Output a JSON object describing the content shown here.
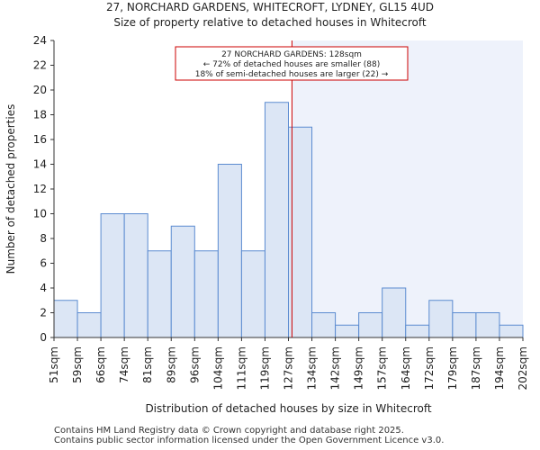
{
  "title_line1": "27, NORCHARD GARDENS, WHITECROFT, LYDNEY, GL15 4UD",
  "title_line2": "Size of property relative to detached houses in Whitecroft",
  "footer_line1": "Contains HM Land Registry data © Crown copyright and database right 2025.",
  "footer_line2": "Contains public sector information licensed under the Open Government Licence v3.0.",
  "colors": {
    "bar_fill": "#dce6f5",
    "bar_stroke": "#5b8bd0",
    "highlight_region": "#eef2fb",
    "marker_line": "#cc0000",
    "annotation_border": "#cc0000"
  },
  "chart_data": {
    "type": "bar",
    "title": "27, NORCHARD GARDENS, WHITECROFT, LYDNEY, GL15 4UD",
    "subtitle": "Size of property relative to detached houses in Whitecroft",
    "xlabel": "Distribution of detached houses by size in Whitecroft",
    "ylabel": "Number of detached properties",
    "bin_edges": [
      "51sqm",
      "59sqm",
      "66sqm",
      "74sqm",
      "81sqm",
      "89sqm",
      "96sqm",
      "104sqm",
      "111sqm",
      "119sqm",
      "127sqm",
      "134sqm",
      "142sqm",
      "149sqm",
      "157sqm",
      "164sqm",
      "172sqm",
      "179sqm",
      "187sqm",
      "194sqm",
      "202sqm"
    ],
    "values": [
      3,
      2,
      10,
      10,
      7,
      9,
      7,
      14,
      7,
      19,
      17,
      2,
      1,
      2,
      4,
      1,
      3,
      2,
      2,
      1
    ],
    "ylim": [
      0,
      24
    ],
    "yticks": [
      0,
      2,
      4,
      6,
      8,
      10,
      12,
      14,
      16,
      18,
      20,
      22,
      24
    ],
    "marker_bin_position": 10.15,
    "grid": false,
    "annotation": {
      "line1": "27 NORCHARD GARDENS: 128sqm",
      "line2": "← 72% of detached houses are smaller (88)",
      "line3": "18% of semi-detached houses are larger (22) →"
    }
  }
}
